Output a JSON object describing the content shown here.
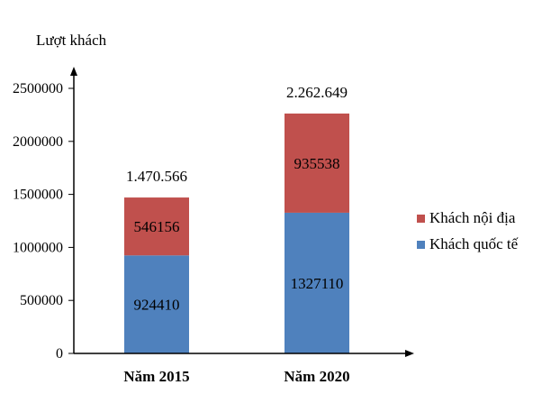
{
  "chart_data": {
    "type": "bar",
    "stacked": true,
    "ylabel": "Lượt khách",
    "ylim": [
      0,
      2500000
    ],
    "yticks": [
      "0",
      "500000",
      "1000000",
      "1500000",
      "2000000",
      "2500000"
    ],
    "categories": [
      "Năm 2015",
      "Năm 2020"
    ],
    "series": [
      {
        "name": "Khách quốc tế",
        "values": [
          924410,
          1327110
        ],
        "labels": [
          "924410",
          "1327110"
        ],
        "color": "#4f81bd"
      },
      {
        "name": "Khách nội địa",
        "values": [
          546156,
          935538
        ],
        "labels": [
          "546156",
          "935538"
        ],
        "color": "#c0504d"
      }
    ],
    "totals": [
      "1.470.566",
      "2.262.649"
    ],
    "legend": {
      "position": "right",
      "order": [
        "Khách nội địa",
        "Khách quốc tế"
      ]
    },
    "grid": false
  }
}
